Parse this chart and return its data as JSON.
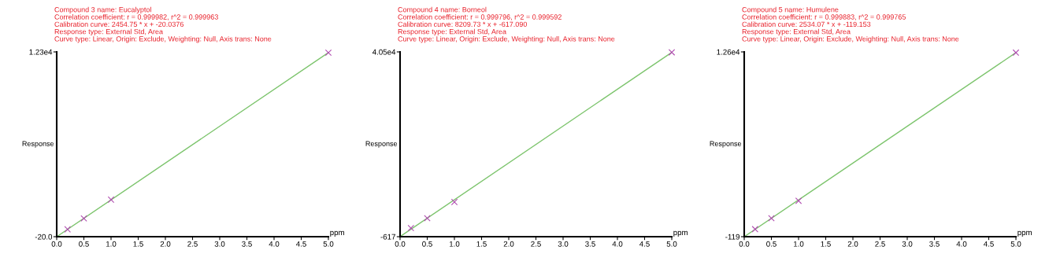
{
  "chart_data": [
    {
      "type": "scatter",
      "title": "Compound 3 name: Eucalyptol",
      "annotations": [
        "Correlation coefficient: r = 0.999982, r^2 = 0.999963",
        "Calibration curve: 2454.75 * x + -20.0376",
        "Response type: External Std, Area",
        "Curve type: Linear, Origin: Exclude, Weighting: Null, Axis trans: None"
      ],
      "xlabel": "ppm",
      "ylabel": "Response",
      "series": [
        {
          "marker": "cross",
          "color": "#b04cb0",
          "x": [
            0.2,
            0.5,
            1.0,
            5.0
          ],
          "values": [
            470,
            1200,
            2450,
            12250
          ]
        },
        {
          "type": "line",
          "marker": "none",
          "color": "#7cc46c",
          "x": [
            0,
            5
          ],
          "values": [
            -20,
            12250
          ]
        }
      ],
      "xlim": [
        0,
        5
      ],
      "ylim": [
        -20.0,
        12300
      ],
      "xticks": [
        {
          "value": 0,
          "label": "0.0"
        },
        {
          "value": 0.5,
          "label": "0.5"
        },
        {
          "value": 1,
          "label": "1.0"
        },
        {
          "value": 1.5,
          "label": "1.5"
        },
        {
          "value": 2,
          "label": "2.0"
        },
        {
          "value": 2.5,
          "label": "2.5"
        },
        {
          "value": 3,
          "label": "3.0"
        },
        {
          "value": 3.5,
          "label": "3.5"
        },
        {
          "value": 4,
          "label": "4.0"
        },
        {
          "value": 4.5,
          "label": "4.5"
        },
        {
          "value": 5,
          "label": "5.0"
        }
      ],
      "yticks": [
        {
          "value": -20.0,
          "label": "-20.0"
        },
        {
          "value": 12300,
          "label": "1.23e4"
        }
      ],
      "grid": false,
      "legend": false
    },
    {
      "type": "scatter",
      "title": "Compound 4 name: Borneol",
      "annotations": [
        "Correlation coefficient: r = 0.999796, r^2 = 0.999592",
        "Calibration curve: 8209.73 * x + -617.090",
        "Response type: External Std, Area",
        "Curve type: Linear, Origin: Exclude, Weighting: Null, Axis trans: None"
      ],
      "xlabel": "ppm",
      "ylabel": "Response",
      "series": [
        {
          "marker": "cross",
          "color": "#b04cb0",
          "x": [
            0.2,
            0.5,
            1.0,
            5.0
          ],
          "values": [
            1300,
            3500,
            7100,
            40400
          ]
        },
        {
          "type": "line",
          "marker": "none",
          "color": "#7cc46c",
          "x": [
            0,
            5
          ],
          "values": [
            -600,
            40400
          ]
        }
      ],
      "xlim": [
        0,
        5
      ],
      "ylim": [
        -617,
        40500
      ],
      "xticks": [
        {
          "value": 0,
          "label": "0.0"
        },
        {
          "value": 0.5,
          "label": "0.5"
        },
        {
          "value": 1,
          "label": "1.0"
        },
        {
          "value": 1.5,
          "label": "1.5"
        },
        {
          "value": 2,
          "label": "2.0"
        },
        {
          "value": 2.5,
          "label": "2.5"
        },
        {
          "value": 3,
          "label": "3.0"
        },
        {
          "value": 3.5,
          "label": "3.5"
        },
        {
          "value": 4,
          "label": "4.0"
        },
        {
          "value": 4.5,
          "label": "4.5"
        },
        {
          "value": 5,
          "label": "5.0"
        }
      ],
      "yticks": [
        {
          "value": -617,
          "label": "-617"
        },
        {
          "value": 40500,
          "label": "4.05e4"
        }
      ],
      "grid": false,
      "legend": false
    },
    {
      "type": "scatter",
      "title": "Compound 5 name: Humulene",
      "annotations": [
        "Correlation coefficient: r = 0.999883, r^2 = 0.999765",
        "Calibration curve: 2534.07 * x + -119.153",
        "Response type: External Std, Area",
        "Curve type: Linear, Origin: Exclude, Weighting: Null, Axis trans: None"
      ],
      "xlabel": "ppm",
      "ylabel": "Response",
      "series": [
        {
          "marker": "cross",
          "color": "#b04cb0",
          "x": [
            0.2,
            0.5,
            1.0,
            5.0
          ],
          "values": [
            400,
            1150,
            2350,
            12550
          ]
        },
        {
          "type": "line",
          "marker": "none",
          "color": "#7cc46c",
          "x": [
            0,
            5
          ],
          "values": [
            -119,
            12550
          ]
        }
      ],
      "xlim": [
        0,
        5
      ],
      "ylim": [
        -119,
        12600
      ],
      "xticks": [
        {
          "value": 0,
          "label": "0.0"
        },
        {
          "value": 0.5,
          "label": "0.5"
        },
        {
          "value": 1,
          "label": "1.0"
        },
        {
          "value": 1.5,
          "label": "1.5"
        },
        {
          "value": 2,
          "label": "2.0"
        },
        {
          "value": 2.5,
          "label": "2.5"
        },
        {
          "value": 3,
          "label": "3.0"
        },
        {
          "value": 3.5,
          "label": "3.5"
        },
        {
          "value": 4,
          "label": "4.0"
        },
        {
          "value": 4.5,
          "label": "4.5"
        },
        {
          "value": 5,
          "label": "5.0"
        }
      ],
      "yticks": [
        {
          "value": -119,
          "label": "-119"
        },
        {
          "value": 12600,
          "label": "1.26e4"
        }
      ],
      "grid": false,
      "legend": false
    }
  ]
}
